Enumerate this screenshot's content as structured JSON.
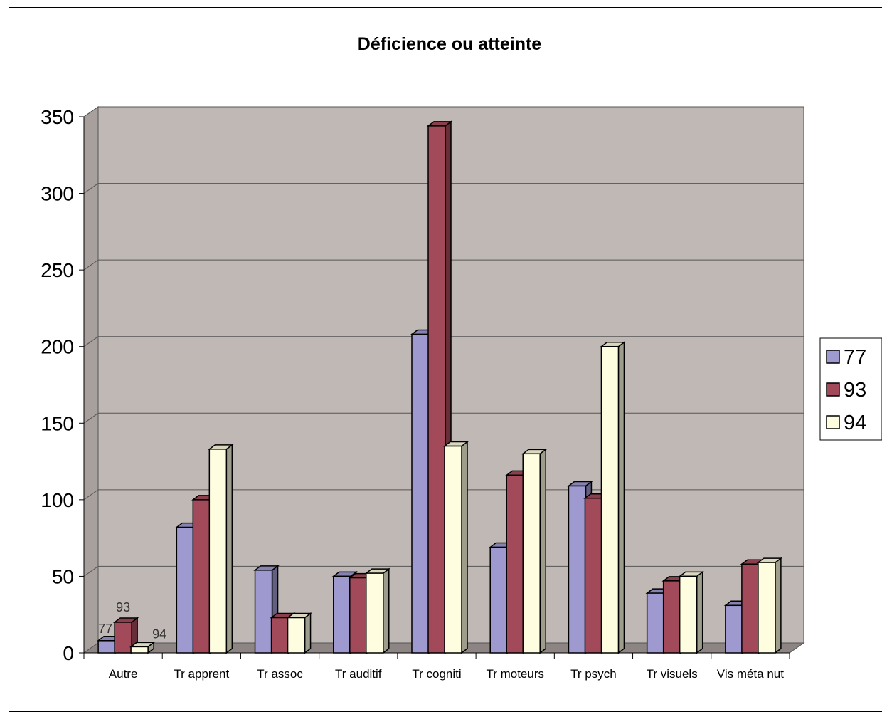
{
  "chart_data": {
    "type": "bar",
    "title": "Déficience ou atteinte",
    "xlabel": "",
    "ylabel": "",
    "ylim": [
      0,
      350
    ],
    "yticks": [
      0,
      50,
      100,
      150,
      200,
      250,
      300,
      350
    ],
    "grid": true,
    "legend_position": "right",
    "categories": [
      "Autre",
      "Tr apprent",
      "Tr assoc",
      "Tr auditif",
      "Tr cogniti",
      "Tr moteurs",
      "Tr psych",
      "Tr visuels",
      "Vis méta nut"
    ],
    "series": [
      {
        "name": "77",
        "color": "#9e9ad0",
        "values": [
          8,
          82,
          54,
          50,
          208,
          69,
          109,
          39,
          31
        ]
      },
      {
        "name": "93",
        "color": "#a34a5a",
        "values": [
          20,
          100,
          23,
          49,
          344,
          116,
          101,
          47,
          58
        ]
      },
      {
        "name": "94",
        "color": "#fffde0",
        "values": [
          4,
          133,
          23,
          52,
          135,
          130,
          200,
          50,
          59
        ]
      }
    ],
    "data_labels": [
      {
        "category": "Autre",
        "series": "77",
        "text": "77"
      },
      {
        "category": "Autre",
        "series": "93",
        "text": "93"
      },
      {
        "category": "Autre",
        "series": "94",
        "text": "94"
      }
    ]
  }
}
